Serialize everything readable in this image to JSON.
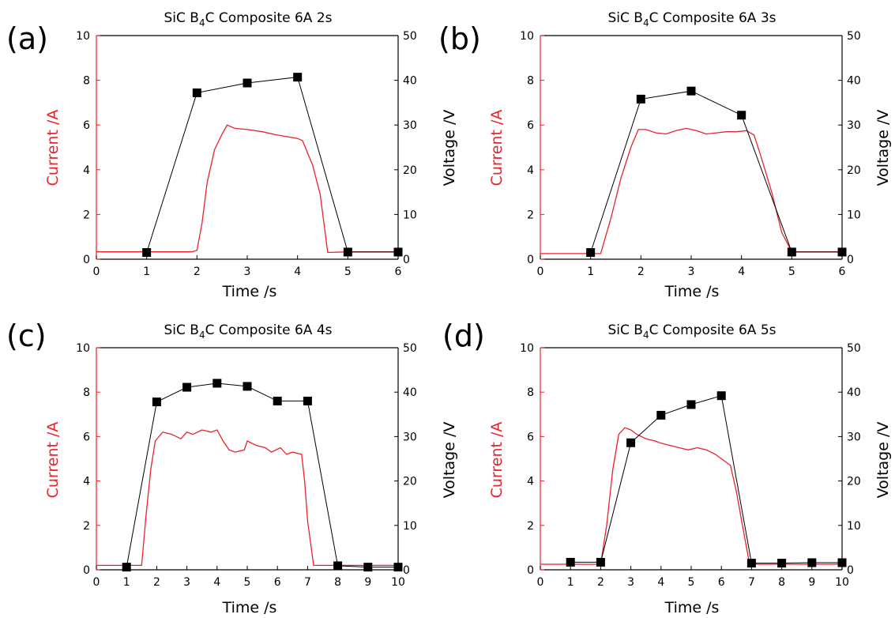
{
  "chart_data": [
    {
      "type": "line",
      "panel_label": "(a)",
      "title": "SiC B4C Composite 6A 2s",
      "title_parts": {
        "pre": "SiC B",
        "sub": "4",
        "post": "C Composite 6A 2s"
      },
      "xlabel": "Time /s",
      "ylabel_left": "Current /A",
      "ylabel_right": "Voltage /V",
      "xlim": [
        0,
        6
      ],
      "ylim_left": [
        0,
        10
      ],
      "ylim_right": [
        0,
        50
      ],
      "xticks": [
        0,
        1,
        2,
        3,
        4,
        5,
        6
      ],
      "yticks_left": [
        0,
        2,
        4,
        6,
        8,
        10
      ],
      "yticks_right": [
        0,
        10,
        20,
        30,
        40,
        50
      ],
      "left_axis_color": "#e8232a",
      "current": {
        "color": "#e8232a",
        "x": [
          0,
          1.9,
          2.0,
          2.1,
          2.2,
          2.35,
          2.5,
          2.6,
          2.75,
          3.0,
          3.3,
          3.6,
          4.0,
          4.1,
          4.3,
          4.45,
          4.6,
          5.0,
          6.0
        ],
        "y": [
          0.33,
          0.33,
          0.4,
          1.6,
          3.4,
          4.9,
          5.6,
          6.0,
          5.85,
          5.8,
          5.7,
          5.55,
          5.4,
          5.3,
          4.2,
          2.9,
          0.3,
          0.33,
          0.33
        ]
      },
      "voltage": {
        "color": "#000000",
        "x": [
          1,
          2,
          3,
          4,
          5,
          6
        ],
        "y": [
          1.5,
          37.2,
          39.4,
          40.7,
          1.6,
          1.6
        ]
      }
    },
    {
      "type": "line",
      "panel_label": "(b)",
      "title": "SiC B4C Composite 6A 3s",
      "title_parts": {
        "pre": "SiC B",
        "sub": "4",
        "post": "C Composite 6A 3s"
      },
      "xlabel": "Time /s",
      "ylabel_left": "Current /A",
      "ylabel_right": "Voltage /V",
      "xlim": [
        0,
        6
      ],
      "ylim_left": [
        0,
        10
      ],
      "ylim_right": [
        0,
        50
      ],
      "xticks": [
        0,
        1,
        2,
        3,
        4,
        5,
        6
      ],
      "yticks_left": [
        0,
        2,
        4,
        6,
        8,
        10
      ],
      "yticks_right": [
        0,
        10,
        20,
        30,
        40,
        50
      ],
      "left_axis_color": "#e8232a",
      "current": {
        "color": "#e8232a",
        "x": [
          0,
          1.2,
          1.4,
          1.6,
          1.8,
          1.95,
          2.1,
          2.3,
          2.5,
          2.7,
          2.9,
          3.1,
          3.3,
          3.5,
          3.7,
          3.9,
          4.1,
          4.25,
          4.4,
          4.6,
          4.8,
          5.0,
          6.0
        ],
        "y": [
          0.25,
          0.25,
          1.8,
          3.6,
          5.0,
          5.8,
          5.8,
          5.65,
          5.6,
          5.75,
          5.85,
          5.75,
          5.6,
          5.65,
          5.7,
          5.7,
          5.75,
          5.55,
          4.5,
          3.0,
          1.2,
          0.33,
          0.33
        ]
      },
      "voltage": {
        "color": "#000000",
        "x": [
          1,
          2,
          3,
          4,
          5,
          6
        ],
        "y": [
          1.5,
          35.8,
          37.6,
          32.2,
          1.6,
          1.6
        ]
      }
    },
    {
      "type": "line",
      "panel_label": "(c)",
      "title": "SiC B4C Composite 6A 4s",
      "title_parts": {
        "pre": "SiC B",
        "sub": "4",
        "post": "C Composite 6A 4s"
      },
      "xlabel": "Time /s",
      "ylabel_left": "Current /A",
      "ylabel_right": "Voltage /V",
      "xlim": [
        0,
        10
      ],
      "ylim_left": [
        0,
        10
      ],
      "ylim_right": [
        0,
        50
      ],
      "xticks": [
        0,
        1,
        2,
        3,
        4,
        5,
        6,
        7,
        8,
        9,
        10
      ],
      "yticks_left": [
        0,
        2,
        4,
        6,
        8,
        10
      ],
      "yticks_right": [
        0,
        10,
        20,
        30,
        40,
        50
      ],
      "left_axis_color": "#e8232a",
      "current": {
        "color": "#e8232a",
        "x": [
          0,
          1.5,
          1.65,
          1.8,
          1.95,
          2.2,
          2.5,
          2.8,
          3.0,
          3.2,
          3.5,
          3.8,
          4.0,
          4.2,
          4.4,
          4.6,
          4.9,
          5.0,
          5.3,
          5.6,
          5.8,
          6.1,
          6.3,
          6.5,
          6.8,
          6.9,
          7.0,
          7.2,
          8.0,
          10.0
        ],
        "y": [
          0.2,
          0.2,
          2.5,
          4.5,
          5.8,
          6.2,
          6.1,
          5.9,
          6.2,
          6.1,
          6.3,
          6.2,
          6.3,
          5.8,
          5.4,
          5.3,
          5.4,
          5.8,
          5.6,
          5.5,
          5.3,
          5.5,
          5.2,
          5.3,
          5.2,
          4.0,
          2.2,
          0.2,
          0.2,
          0.2
        ]
      },
      "voltage": {
        "color": "#000000",
        "x": [
          1,
          2,
          3,
          4,
          5,
          6,
          7,
          8,
          9,
          10
        ],
        "y": [
          0.6,
          37.8,
          41.1,
          42.0,
          41.3,
          38.0,
          38.0,
          0.9,
          0.6,
          0.6
        ]
      }
    },
    {
      "type": "line",
      "panel_label": "(d)",
      "title": "SiC B4C Composite 6A 5s",
      "title_parts": {
        "pre": "SiC B",
        "sub": "4",
        "post": "C Composite 6A 5s"
      },
      "xlabel": "Time /s",
      "ylabel_left": "Current /A",
      "ylabel_right": "Voltage /V",
      "xlim": [
        0,
        10
      ],
      "ylim_left": [
        0,
        10
      ],
      "ylim_right": [
        0,
        50
      ],
      "xticks": [
        0,
        1,
        2,
        3,
        4,
        5,
        6,
        7,
        8,
        9,
        10
      ],
      "yticks_left": [
        0,
        2,
        4,
        6,
        8,
        10
      ],
      "yticks_right": [
        0,
        10,
        20,
        30,
        40,
        50
      ],
      "left_axis_color": "#e8232a",
      "current": {
        "color": "#e8232a",
        "x": [
          0,
          2.0,
          2.2,
          2.4,
          2.6,
          2.8,
          3.0,
          3.2,
          3.5,
          3.8,
          4.0,
          4.3,
          4.6,
          4.9,
          5.2,
          5.5,
          5.8,
          6.0,
          6.3,
          6.5,
          6.7,
          6.9,
          7.0,
          7.2,
          10.0
        ],
        "y": [
          0.25,
          0.25,
          2.0,
          4.5,
          6.1,
          6.4,
          6.3,
          6.1,
          5.9,
          5.8,
          5.7,
          5.6,
          5.5,
          5.4,
          5.5,
          5.4,
          5.2,
          5.0,
          4.7,
          3.5,
          2.0,
          0.5,
          0.3,
          0.25,
          0.25
        ]
      },
      "voltage": {
        "color": "#000000",
        "x": [
          1,
          2,
          3,
          4,
          5,
          6,
          7,
          8,
          9,
          10
        ],
        "y": [
          1.7,
          1.7,
          28.6,
          34.8,
          37.2,
          39.2,
          1.5,
          1.5,
          1.6,
          1.6
        ]
      }
    }
  ]
}
